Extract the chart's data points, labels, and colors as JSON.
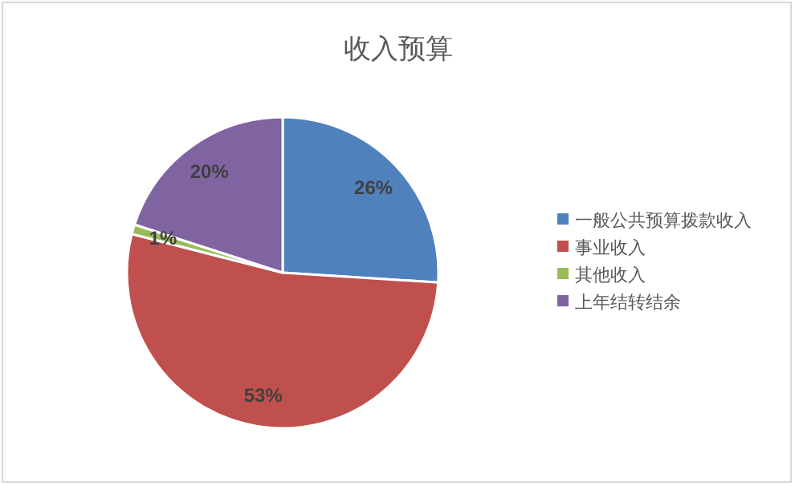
{
  "chart_data": {
    "type": "pie",
    "title": "收入预算",
    "categories": [
      "一般公共预算拨款收入",
      "事业收入",
      "其他收入",
      "上年结转结余"
    ],
    "values": [
      26,
      53,
      1,
      20
    ],
    "colors": [
      "#4f81bd",
      "#c0504d",
      "#9bbb59",
      "#8064a2"
    ],
    "value_labels": [
      "26%",
      "53%",
      "1%",
      "20%"
    ],
    "legend": "right"
  }
}
